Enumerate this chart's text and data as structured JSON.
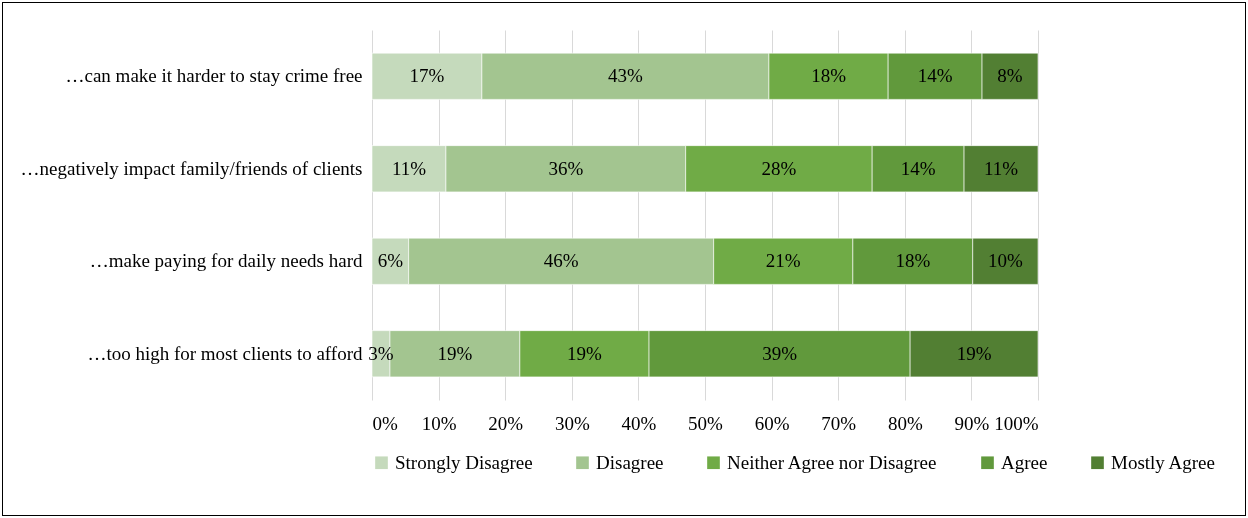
{
  "chart_data": {
    "type": "bar",
    "orientation": "horizontal",
    "stacked": true,
    "categories": [
      "…can make it harder to stay crime free",
      "…negatively impact family/friends of clients",
      "…make paying for daily needs hard",
      "…too high for most clients to afford"
    ],
    "series": [
      {
        "name": "Strongly Disagree",
        "color": "#c5dabc",
        "values": [
          16.5,
          11.1,
          5.5,
          2.7
        ],
        "value_labels": [
          "17%",
          "11%",
          "6%",
          "3%"
        ]
      },
      {
        "name": "Disagree",
        "color": "#a3c590",
        "values": [
          43.1,
          36,
          45.8,
          19.5
        ],
        "value_labels": [
          "43%",
          "36%",
          "46%",
          "19%"
        ]
      },
      {
        "name": "Neither Agree nor Disagree",
        "color": "#70ab46",
        "values": [
          17.9,
          28,
          20.9,
          19.4
        ],
        "value_labels": [
          "18%",
          "28%",
          "21%",
          "19%"
        ]
      },
      {
        "name": "Agree",
        "color": "#61993c",
        "values": [
          14.1,
          13.8,
          18,
          39.2
        ],
        "value_labels": [
          "14%",
          "14%",
          "18%",
          "39%"
        ]
      },
      {
        "name": "Mostly Agree",
        "color": "#527f33",
        "values": [
          8.4,
          11.1,
          9.8,
          19.2
        ],
        "value_labels": [
          "8%",
          "11%",
          "10%",
          "19%"
        ]
      }
    ],
    "xlim": [
      0,
      100
    ],
    "xticks": [
      {
        "value": 0,
        "label": "0%"
      },
      {
        "value": 10,
        "label": "10%"
      },
      {
        "value": 20,
        "label": "20%"
      },
      {
        "value": 30,
        "label": "30%"
      },
      {
        "value": 40,
        "label": "40%"
      },
      {
        "value": 50,
        "label": "50%"
      },
      {
        "value": 60,
        "label": "60%"
      },
      {
        "value": 70,
        "label": "70%"
      },
      {
        "value": 80,
        "label": "80%"
      },
      {
        "value": 90,
        "label": "90%"
      },
      {
        "value": 100,
        "label": "100%"
      }
    ],
    "grid": "x",
    "legend": "bottom"
  }
}
